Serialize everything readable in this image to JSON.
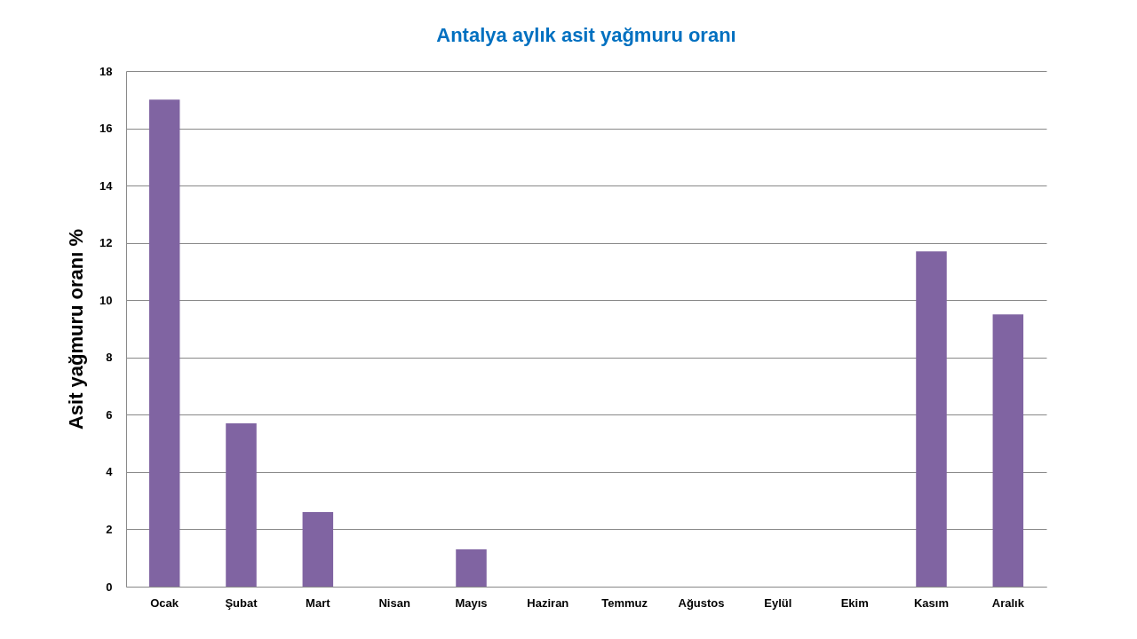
{
  "chart_data": {
    "type": "bar",
    "title": "Antalya aylık asit yağmuru oranı",
    "ylabel": "Asit yağmuru oranı %",
    "categories": [
      "Ocak",
      "Şubat",
      "Mart",
      "Nisan",
      "Mayıs",
      "Haziran",
      "Temmuz",
      "Ağustos",
      "Eylül",
      "Ekim",
      "Kasım",
      "Aralık"
    ],
    "values": [
      17,
      5.7,
      2.6,
      0,
      1.3,
      0,
      0,
      0,
      0,
      0,
      11.7,
      9.5
    ],
    "color": "#8064a2",
    "ylim": [
      0,
      18
    ],
    "yticks": [
      0,
      2,
      4,
      6,
      8,
      10,
      12,
      14,
      16,
      18
    ],
    "grid": "y"
  }
}
